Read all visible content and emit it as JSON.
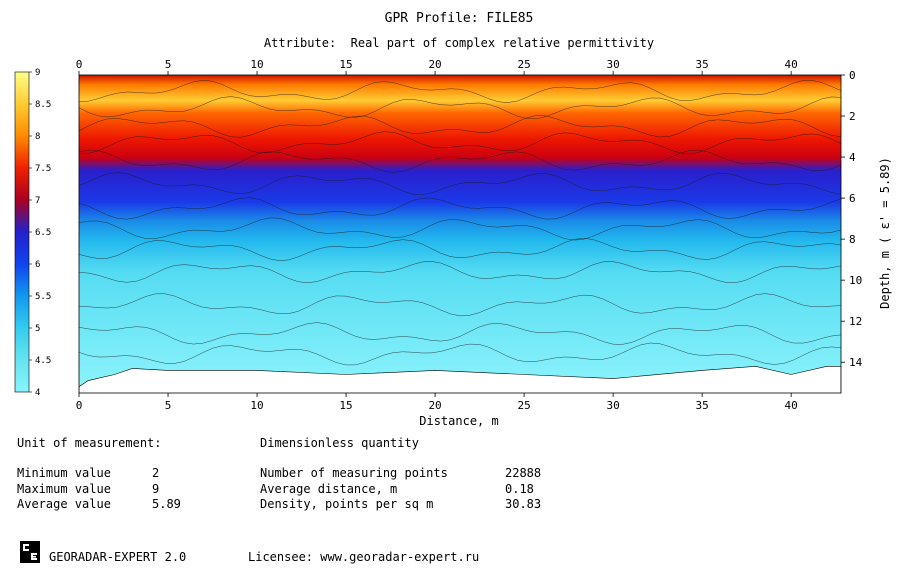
{
  "chart_data": {
    "type": "heatmap",
    "title": "GPR Profile: FILE85",
    "subtitle": "Attribute:  Real part of complex relative permittivity",
    "xlabel": "Distance, m",
    "ylabel": "Depth, m ( ε' = 5.89)",
    "xlim": [
      0,
      42.8
    ],
    "ylim": [
      0,
      15.5
    ],
    "x_ticks": [
      "0",
      "5",
      "10",
      "15",
      "20",
      "25",
      "30",
      "35",
      "40"
    ],
    "y_ticks": [
      "0",
      "2",
      "4",
      "6",
      "8",
      "10",
      "12",
      "14"
    ],
    "colorbar": {
      "range": [
        4,
        9
      ],
      "ticks": [
        "9",
        "8.5",
        "8",
        "7.5",
        "7",
        "6.5",
        "6",
        "5.5",
        "5",
        "4.5",
        "4"
      ],
      "colors": [
        "#ffff88",
        "#ffcc33",
        "#ff6a00",
        "#ee1a00",
        "#cc0000",
        "#990033",
        "#2222cc",
        "#1144ee",
        "#1199ee",
        "#33ccee",
        "#66e4f0",
        "#88f4ff"
      ]
    },
    "layers": [
      {
        "depth_from": 0.0,
        "depth_to": 0.8,
        "value": 7.3
      },
      {
        "depth_from": 0.8,
        "depth_to": 2.5,
        "value": 8.0
      },
      {
        "depth_from": 2.5,
        "depth_to": 4.2,
        "value": 7.2
      },
      {
        "depth_from": 4.2,
        "depth_to": 6.5,
        "value": 6.0
      },
      {
        "depth_from": 6.5,
        "depth_to": 8.5,
        "value": 5.2
      },
      {
        "depth_from": 8.5,
        "depth_to": 15.5,
        "value": 4.6
      }
    ],
    "bottom_boundary": [
      [
        0,
        15.2
      ],
      [
        0.5,
        14.9
      ],
      [
        1,
        14.8
      ],
      [
        2,
        14.6
      ],
      [
        3,
        14.3
      ],
      [
        5,
        14.4
      ],
      [
        10,
        14.4
      ],
      [
        15,
        14.6
      ],
      [
        20,
        14.4
      ],
      [
        25,
        14.6
      ],
      [
        30,
        14.8
      ],
      [
        35,
        14.4
      ],
      [
        38,
        14.2
      ],
      [
        40,
        14.6
      ],
      [
        42,
        14.2
      ],
      [
        42.8,
        14.2
      ]
    ]
  },
  "stats": {
    "unit_label": "Unit of measurement:",
    "unit_value": "Dimensionless quantity",
    "min_label": "Minimum value",
    "min_value": "2",
    "max_label": "Maximum value",
    "max_value": "9",
    "avg_label": "Average value",
    "avg_value": "5.89",
    "points_label": "Number of measuring points",
    "points_value": "22888",
    "distance_label": "Average distance, m",
    "distance_value": "0.18",
    "density_label": "Density, points per sq m",
    "density_value": "30.83"
  },
  "footer": {
    "product": "GEORADAR-EXPERT 2.0",
    "licensee": "Licensee: www.georadar-expert.ru"
  }
}
